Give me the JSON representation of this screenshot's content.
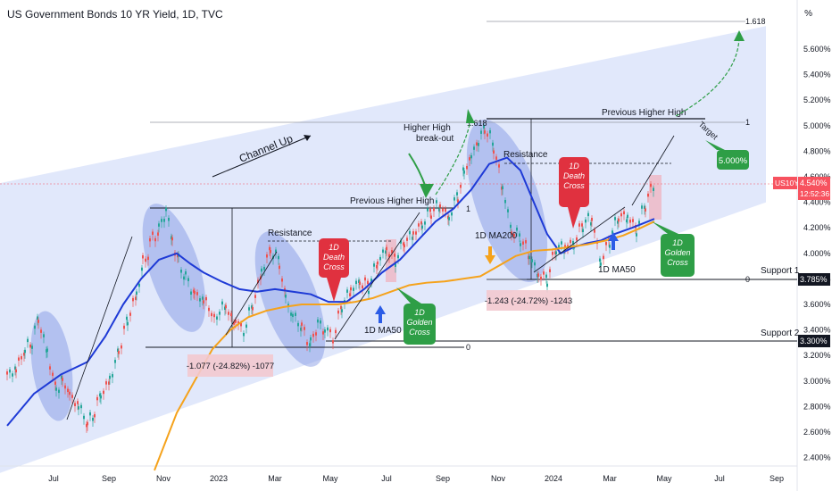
{
  "header": {
    "title": "US Government Bonds 10 YR Yield, 1D, TVC",
    "unit_symbol": "%"
  },
  "price_tags": {
    "symbol": "US10Y",
    "last": "4.540%",
    "countdown": "12:52:36",
    "support1": "3.785%",
    "support2": "3.300%"
  },
  "annotations": {
    "channel_up": "Channel Up",
    "higher_high_breakout_1": "Higher High",
    "higher_high_breakout_2": "break-out",
    "previous_higher_high": "Previous Higher High",
    "previous_higher_high_top": "Previous Higher High",
    "resistance": "Resistance",
    "death_cross_1": "1D",
    "death_cross_2": "Death",
    "death_cross_3": "Cross",
    "golden_cross_1": "1D",
    "golden_cross_2": "Golden",
    "golden_cross_3": "Cross",
    "ma50": "1D MA50",
    "ma200": "1D MA200",
    "support1": "Support 1",
    "support2": "Support 2",
    "target": "Target",
    "target_value": "5.000%",
    "fib_1618": "1.618",
    "fib_1": "1",
    "fib_0": "0",
    "drop1": "-1.077 (-24.82%) -1077",
    "drop2": "-1.243 (-24.72%) -1243"
  },
  "chart_data": {
    "type": "line",
    "title": "US Government Bonds 10 YR Yield, 1D, TVC",
    "xlabel": "",
    "ylabel": "",
    "ylim": [
      2.3,
      5.9
    ],
    "x_tick_labels": [
      "Jul",
      "Sep",
      "Nov",
      "2023",
      "Mar",
      "May",
      "Jul",
      "Sep",
      "Nov",
      "2024",
      "Mar",
      "May",
      "Jul",
      "Sep"
    ],
    "y_tick_labels": [
      "5.600%",
      "5.400%",
      "5.200%",
      "5.000%",
      "4.800%",
      "4.600%",
      "4.400%",
      "4.200%",
      "4.000%",
      "3.800%",
      "3.600%",
      "3.400%",
      "3.200%",
      "3.000%",
      "2.800%",
      "2.600%",
      "2.400%"
    ],
    "y_ticks": [
      5.6,
      5.4,
      5.2,
      5.0,
      4.8,
      4.6,
      4.4,
      4.2,
      4.0,
      3.8,
      3.6,
      3.4,
      3.2,
      3.0,
      2.8,
      2.6,
      2.4
    ],
    "series": [
      {
        "name": "Price",
        "color": "#26a69a",
        "t": [
          0,
          10,
          20,
          28,
          35,
          45,
          55,
          62,
          70,
          80,
          90,
          98,
          105,
          115,
          125,
          135,
          145,
          152,
          160,
          170,
          178,
          185,
          192,
          200,
          210,
          220,
          232,
          245,
          256,
          265,
          275,
          285,
          295,
          305,
          312,
          320,
          330,
          340,
          348,
          356,
          365,
          375,
          385,
          395,
          405,
          415,
          425,
          435,
          445,
          455,
          465,
          475,
          485,
          495,
          505,
          512,
          520,
          528,
          535,
          545,
          555,
          565,
          575,
          585,
          595,
          605,
          615,
          625,
          635,
          645,
          655,
          665,
          675,
          685,
          695,
          705,
          715,
          725
        ],
        "values": [
          3.05,
          3.1,
          3.2,
          3.3,
          3.45,
          3.2,
          2.95,
          3.0,
          2.9,
          2.8,
          2.62,
          2.75,
          2.85,
          3.0,
          3.25,
          3.45,
          3.65,
          3.9,
          4.05,
          4.2,
          4.33,
          4.1,
          3.95,
          3.8,
          3.7,
          3.6,
          3.5,
          3.55,
          3.45,
          3.4,
          3.55,
          3.85,
          4.05,
          3.9,
          3.6,
          3.5,
          3.38,
          3.3,
          3.45,
          3.38,
          3.35,
          3.55,
          3.7,
          3.8,
          3.72,
          3.9,
          4.05,
          3.95,
          4.05,
          4.15,
          4.25,
          4.3,
          4.35,
          4.3,
          4.45,
          4.6,
          4.75,
          4.88,
          5.0,
          4.8,
          4.5,
          4.2,
          4.1,
          3.95,
          3.85,
          3.8,
          4.0,
          4.05,
          4.1,
          4.2,
          4.25,
          3.95,
          4.1,
          4.25,
          4.3,
          4.2,
          4.35,
          4.55
        ]
      },
      {
        "name": "1D MA50",
        "color": "#1e3ad6",
        "t": [
          0,
          30,
          60,
          90,
          110,
          130,
          150,
          170,
          190,
          205,
          220,
          240,
          260,
          280,
          300,
          320,
          340,
          360,
          380,
          400,
          420,
          440,
          460,
          480,
          500,
          520,
          540,
          560,
          575,
          590,
          605,
          620,
          635,
          650,
          665,
          680,
          700,
          725
        ],
        "values": [
          2.65,
          2.9,
          3.05,
          3.15,
          3.35,
          3.6,
          3.8,
          3.95,
          4.0,
          3.92,
          3.85,
          3.78,
          3.72,
          3.7,
          3.72,
          3.7,
          3.68,
          3.62,
          3.62,
          3.72,
          3.85,
          3.95,
          4.1,
          4.25,
          4.35,
          4.5,
          4.7,
          4.75,
          4.65,
          4.4,
          4.15,
          4.0,
          4.05,
          4.08,
          4.1,
          4.15,
          4.2,
          4.27
        ]
      },
      {
        "name": "1D MA200",
        "color": "#f5a21b",
        "t": [
          165,
          190,
          210,
          230,
          250,
          270,
          290,
          310,
          330,
          350,
          370,
          390,
          410,
          430,
          450,
          470,
          490,
          510,
          530,
          550,
          570,
          590,
          610,
          630,
          650,
          670,
          690,
          710,
          725
        ],
        "values": [
          2.3,
          2.75,
          3.0,
          3.25,
          3.4,
          3.5,
          3.55,
          3.58,
          3.6,
          3.6,
          3.6,
          3.62,
          3.65,
          3.7,
          3.75,
          3.77,
          3.78,
          3.8,
          3.82,
          3.9,
          3.98,
          4.02,
          4.03,
          4.05,
          4.07,
          4.1,
          4.14,
          4.2,
          4.25
        ]
      }
    ]
  }
}
